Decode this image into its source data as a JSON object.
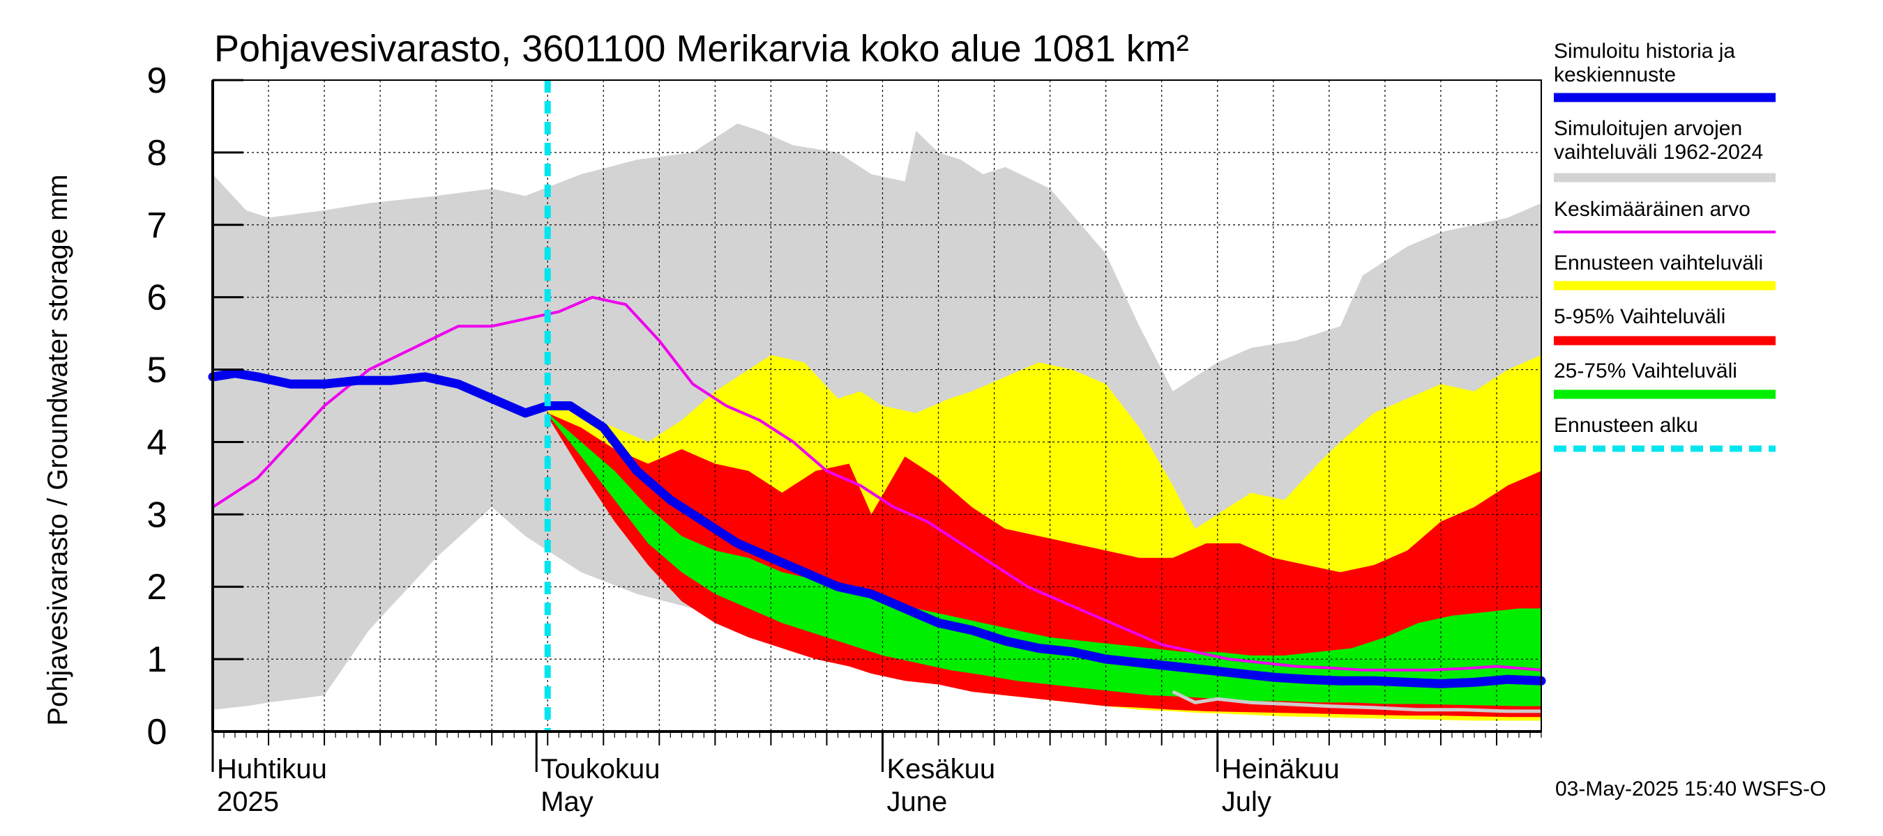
{
  "chart_data": {
    "type": "area",
    "title": "Pohjavesivarasto, 3601100 Merikarvia koko alue 1081 km²",
    "ylabel": "Pohjavesivarasto / Groundwater storage   mm",
    "ylim": [
      0,
      9
    ],
    "yticks": [
      0,
      1,
      2,
      3,
      4,
      5,
      6,
      7,
      8,
      9
    ],
    "x_range_days": [
      0,
      119
    ],
    "grid": true,
    "months": [
      {
        "label_fi": "Huhtikuu",
        "label_en": "2025",
        "day": 0
      },
      {
        "label_fi": "Toukokuu",
        "label_en": "May",
        "day": 29
      },
      {
        "label_fi": "Kesäkuu",
        "label_en": "June",
        "day": 60
      },
      {
        "label_fi": "Heinäkuu",
        "label_en": "July",
        "day": 90
      }
    ],
    "forecast_start_day": 30,
    "legend": [
      {
        "label": "Simuloitu historia ja keskiennuste",
        "color": "#0000ee"
      },
      {
        "label": "Simuloitujen arvojen vaihteluväli 1962-2024",
        "color": "#d3d3d3"
      },
      {
        "label": "Keskimääräinen arvo",
        "color": "#ee00ee"
      },
      {
        "label": "Ennusteen vaihteluväli",
        "color": "#ffff00"
      },
      {
        "label": "5-95% Vaihteluväli",
        "color": "#ff0000"
      },
      {
        "label": "25-75% Vaihteluväli",
        "color": "#00ee00"
      },
      {
        "label": "Ennusteen alku",
        "color": "#00e5ee"
      }
    ],
    "legend_position": "right",
    "timestamp": "03-May-2025 15:40 WSFS-O",
    "series": {
      "hist_range": {
        "x": [
          0,
          3,
          5,
          10,
          14,
          20,
          25,
          28,
          33,
          38,
          43,
          47,
          49,
          52,
          56,
          59,
          62,
          63,
          65,
          67,
          69,
          71,
          75,
          80,
          83,
          86,
          88,
          90,
          93,
          97,
          101,
          103,
          107,
          110,
          113,
          116,
          119
        ],
        "upper": [
          7.7,
          7.2,
          7.1,
          7.2,
          7.3,
          7.4,
          7.5,
          7.4,
          7.7,
          7.9,
          8.0,
          8.4,
          8.3,
          8.1,
          8.0,
          7.7,
          7.6,
          8.3,
          8.0,
          7.9,
          7.7,
          7.8,
          7.5,
          6.6,
          5.6,
          4.7,
          4.9,
          5.1,
          5.3,
          5.4,
          5.6,
          6.3,
          6.7,
          6.9,
          7.0,
          7.1,
          7.3
        ],
        "lower": [
          0.3,
          0.35,
          0.4,
          0.5,
          1.4,
          2.4,
          3.1,
          2.7,
          2.2,
          1.9,
          1.7,
          2.1,
          1.9,
          1.5,
          1.2,
          1.0,
          0.9,
          0.85,
          0.8,
          0.75,
          0.7,
          0.65,
          0.55,
          0.45,
          0.4,
          0.35,
          0.3,
          0.28,
          0.25,
          0.22,
          0.2,
          0.2,
          0.18,
          0.17,
          0.16,
          0.15,
          0.15
        ]
      },
      "forecast_range": {
        "x": [
          30,
          33,
          36,
          39,
          42,
          45,
          48,
          50,
          53,
          56,
          58,
          60,
          63,
          66,
          68,
          71,
          74,
          77,
          80,
          83,
          86,
          88,
          90,
          93,
          96,
          99,
          101,
          104,
          107,
          110,
          113,
          116,
          119
        ],
        "upper": [
          4.5,
          4.4,
          4.2,
          4.0,
          4.3,
          4.7,
          5.0,
          5.2,
          5.1,
          4.6,
          4.7,
          4.5,
          4.4,
          4.6,
          4.7,
          4.9,
          5.1,
          5.0,
          4.8,
          4.2,
          3.4,
          2.8,
          3.0,
          3.3,
          3.2,
          3.7,
          4.0,
          4.4,
          4.6,
          4.8,
          4.7,
          5.0,
          5.2
        ],
        "lower": [
          4.4,
          3.7,
          3.0,
          2.5,
          2.0,
          1.7,
          1.4,
          1.3,
          1.1,
          1.0,
          0.9,
          0.85,
          0.75,
          0.65,
          0.55,
          0.5,
          0.45,
          0.4,
          0.35,
          0.3,
          0.28,
          0.26,
          0.25,
          0.23,
          0.21,
          0.2,
          0.19,
          0.18,
          0.17,
          0.16,
          0.15,
          0.15,
          0.15
        ]
      },
      "p5_95": {
        "x": [
          30,
          33,
          36,
          39,
          42,
          45,
          48,
          51,
          54,
          57,
          59,
          62,
          65,
          68,
          71,
          74,
          77,
          80,
          83,
          86,
          89,
          92,
          95,
          98,
          101,
          104,
          107,
          110,
          113,
          116,
          119
        ],
        "upper": [
          4.4,
          4.2,
          3.9,
          3.7,
          3.9,
          3.7,
          3.6,
          3.3,
          3.6,
          3.7,
          3.0,
          3.8,
          3.5,
          3.1,
          2.8,
          2.7,
          2.6,
          2.5,
          2.4,
          2.4,
          2.6,
          2.6,
          2.4,
          2.3,
          2.2,
          2.3,
          2.5,
          2.9,
          3.1,
          3.4,
          3.6
        ],
        "lower": [
          4.35,
          3.6,
          2.9,
          2.3,
          1.8,
          1.5,
          1.3,
          1.15,
          1.0,
          0.9,
          0.8,
          0.7,
          0.65,
          0.55,
          0.5,
          0.45,
          0.4,
          0.35,
          0.33,
          0.3,
          0.28,
          0.27,
          0.26,
          0.25,
          0.24,
          0.23,
          0.22,
          0.22,
          0.21,
          0.2,
          0.2
        ]
      },
      "p25_75": {
        "x": [
          30,
          33,
          36,
          39,
          42,
          45,
          48,
          51,
          54,
          57,
          60,
          63,
          66,
          69,
          72,
          75,
          78,
          81,
          84,
          87,
          90,
          93,
          96,
          99,
          102,
          105,
          108,
          111,
          114,
          117,
          119
        ],
        "upper": [
          4.4,
          4.0,
          3.6,
          3.1,
          2.7,
          2.5,
          2.4,
          2.2,
          2.1,
          2.0,
          1.8,
          1.7,
          1.6,
          1.5,
          1.4,
          1.3,
          1.25,
          1.2,
          1.15,
          1.1,
          1.1,
          1.05,
          1.05,
          1.1,
          1.15,
          1.3,
          1.5,
          1.6,
          1.65,
          1.7,
          1.7
        ],
        "lower": [
          4.38,
          3.8,
          3.2,
          2.6,
          2.2,
          1.9,
          1.7,
          1.5,
          1.35,
          1.2,
          1.05,
          0.95,
          0.85,
          0.78,
          0.7,
          0.65,
          0.6,
          0.55,
          0.5,
          0.48,
          0.45,
          0.42,
          0.42,
          0.4,
          0.4,
          0.38,
          0.38,
          0.37,
          0.36,
          0.35,
          0.35
        ]
      },
      "mean": {
        "x": [
          0,
          2,
          4,
          7,
          10,
          14,
          18,
          22,
          25,
          28,
          31,
          34,
          37,
          40,
          43,
          46,
          49,
          52,
          55,
          58,
          61,
          64,
          67,
          70,
          73,
          76,
          79,
          82,
          85,
          88,
          91,
          94,
          97,
          100,
          103,
          106,
          109,
          112,
          115,
          119
        ],
        "values": [
          3.1,
          3.3,
          3.5,
          4.0,
          4.5,
          5.0,
          5.3,
          5.6,
          5.6,
          5.7,
          5.8,
          6.0,
          5.9,
          5.4,
          4.8,
          4.5,
          4.3,
          4.0,
          3.6,
          3.4,
          3.1,
          2.9,
          2.6,
          2.3,
          2.0,
          1.8,
          1.6,
          1.4,
          1.2,
          1.1,
          1.0,
          0.95,
          0.9,
          0.88,
          0.85,
          0.85,
          0.85,
          0.87,
          0.9,
          0.85
        ]
      },
      "median": {
        "x": [
          0,
          2,
          4,
          7,
          10,
          13,
          16,
          19,
          22,
          25,
          28,
          30,
          32,
          35,
          38,
          41,
          44,
          47,
          50,
          53,
          56,
          59,
          62,
          65,
          68,
          71,
          74,
          77,
          80,
          83,
          86,
          89,
          92,
          95,
          98,
          101,
          104,
          107,
          110,
          113,
          116,
          119
        ],
        "values": [
          4.9,
          4.95,
          4.9,
          4.8,
          4.8,
          4.85,
          4.85,
          4.9,
          4.8,
          4.6,
          4.4,
          4.5,
          4.5,
          4.2,
          3.6,
          3.2,
          2.9,
          2.6,
          2.4,
          2.2,
          2.0,
          1.9,
          1.7,
          1.5,
          1.4,
          1.25,
          1.15,
          1.1,
          1.0,
          0.95,
          0.9,
          0.85,
          0.8,
          0.75,
          0.72,
          0.7,
          0.7,
          0.68,
          0.66,
          0.68,
          0.72,
          0.7
        ]
      },
      "obs_min": {
        "x": [
          86,
          88,
          90,
          93,
          96,
          100,
          104,
          108,
          112,
          116,
          119
        ],
        "values": [
          0.55,
          0.4,
          0.45,
          0.4,
          0.38,
          0.35,
          0.33,
          0.3,
          0.3,
          0.28,
          0.28
        ]
      }
    }
  }
}
